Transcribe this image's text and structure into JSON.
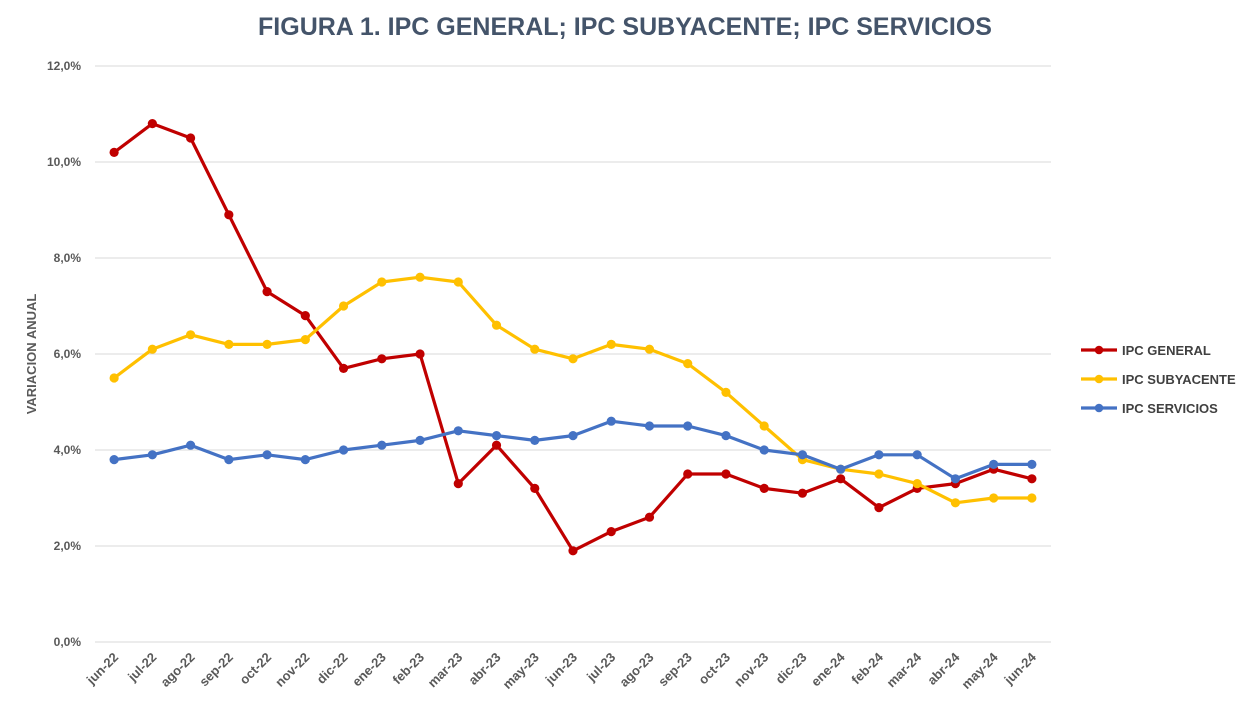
{
  "chart_data": {
    "type": "line",
    "title": "FIGURA 1. IPC GENERAL; IPC SUBYACENTE; IPC SERVICIOS",
    "xlabel": "",
    "ylabel": "VARIACION ANUAL",
    "ylim": [
      0,
      12
    ],
    "yticks": [
      0,
      2,
      4,
      6,
      8,
      10,
      12
    ],
    "ytick_labels": [
      "0,0%",
      "2,0%",
      "4,0%",
      "6,0%",
      "8,0%",
      "10,0%",
      "12,0%"
    ],
    "grid": true,
    "legend_position": "right",
    "categories": [
      "jun-22",
      "jul-22",
      "ago-22",
      "sep-22",
      "oct-22",
      "nov-22",
      "dic-22",
      "ene-23",
      "feb-23",
      "mar-23",
      "abr-23",
      "may-23",
      "jun-23",
      "jul-23",
      "ago-23",
      "sep-23",
      "oct-23",
      "nov-23",
      "dic-23",
      "ene-24",
      "feb-24",
      "mar-24",
      "abr-24",
      "may-24",
      "jun-24"
    ],
    "series": [
      {
        "name": "IPC GENERAL",
        "color": "#c00000",
        "values": [
          10.2,
          10.8,
          10.5,
          8.9,
          7.3,
          6.8,
          5.7,
          5.9,
          6.0,
          3.3,
          4.1,
          3.2,
          1.9,
          2.3,
          2.6,
          3.5,
          3.5,
          3.2,
          3.1,
          3.4,
          2.8,
          3.2,
          3.3,
          3.6,
          3.4
        ]
      },
      {
        "name": "IPC SUBYACENTE",
        "color": "#ffc000",
        "values": [
          5.5,
          6.1,
          6.4,
          6.2,
          6.2,
          6.3,
          7.0,
          7.5,
          7.6,
          7.5,
          6.6,
          6.1,
          5.9,
          6.2,
          6.1,
          5.8,
          5.2,
          4.5,
          3.8,
          3.6,
          3.5,
          3.3,
          2.9,
          3.0,
          3.0
        ]
      },
      {
        "name": "IPC SERVICIOS",
        "color": "#4472c4",
        "values": [
          3.8,
          3.9,
          4.1,
          3.8,
          3.9,
          3.8,
          4.0,
          4.1,
          4.2,
          4.4,
          4.3,
          4.2,
          4.3,
          4.6,
          4.5,
          4.5,
          4.3,
          4.0,
          3.9,
          3.6,
          3.9,
          3.9,
          3.4,
          3.7,
          3.7
        ]
      }
    ]
  }
}
